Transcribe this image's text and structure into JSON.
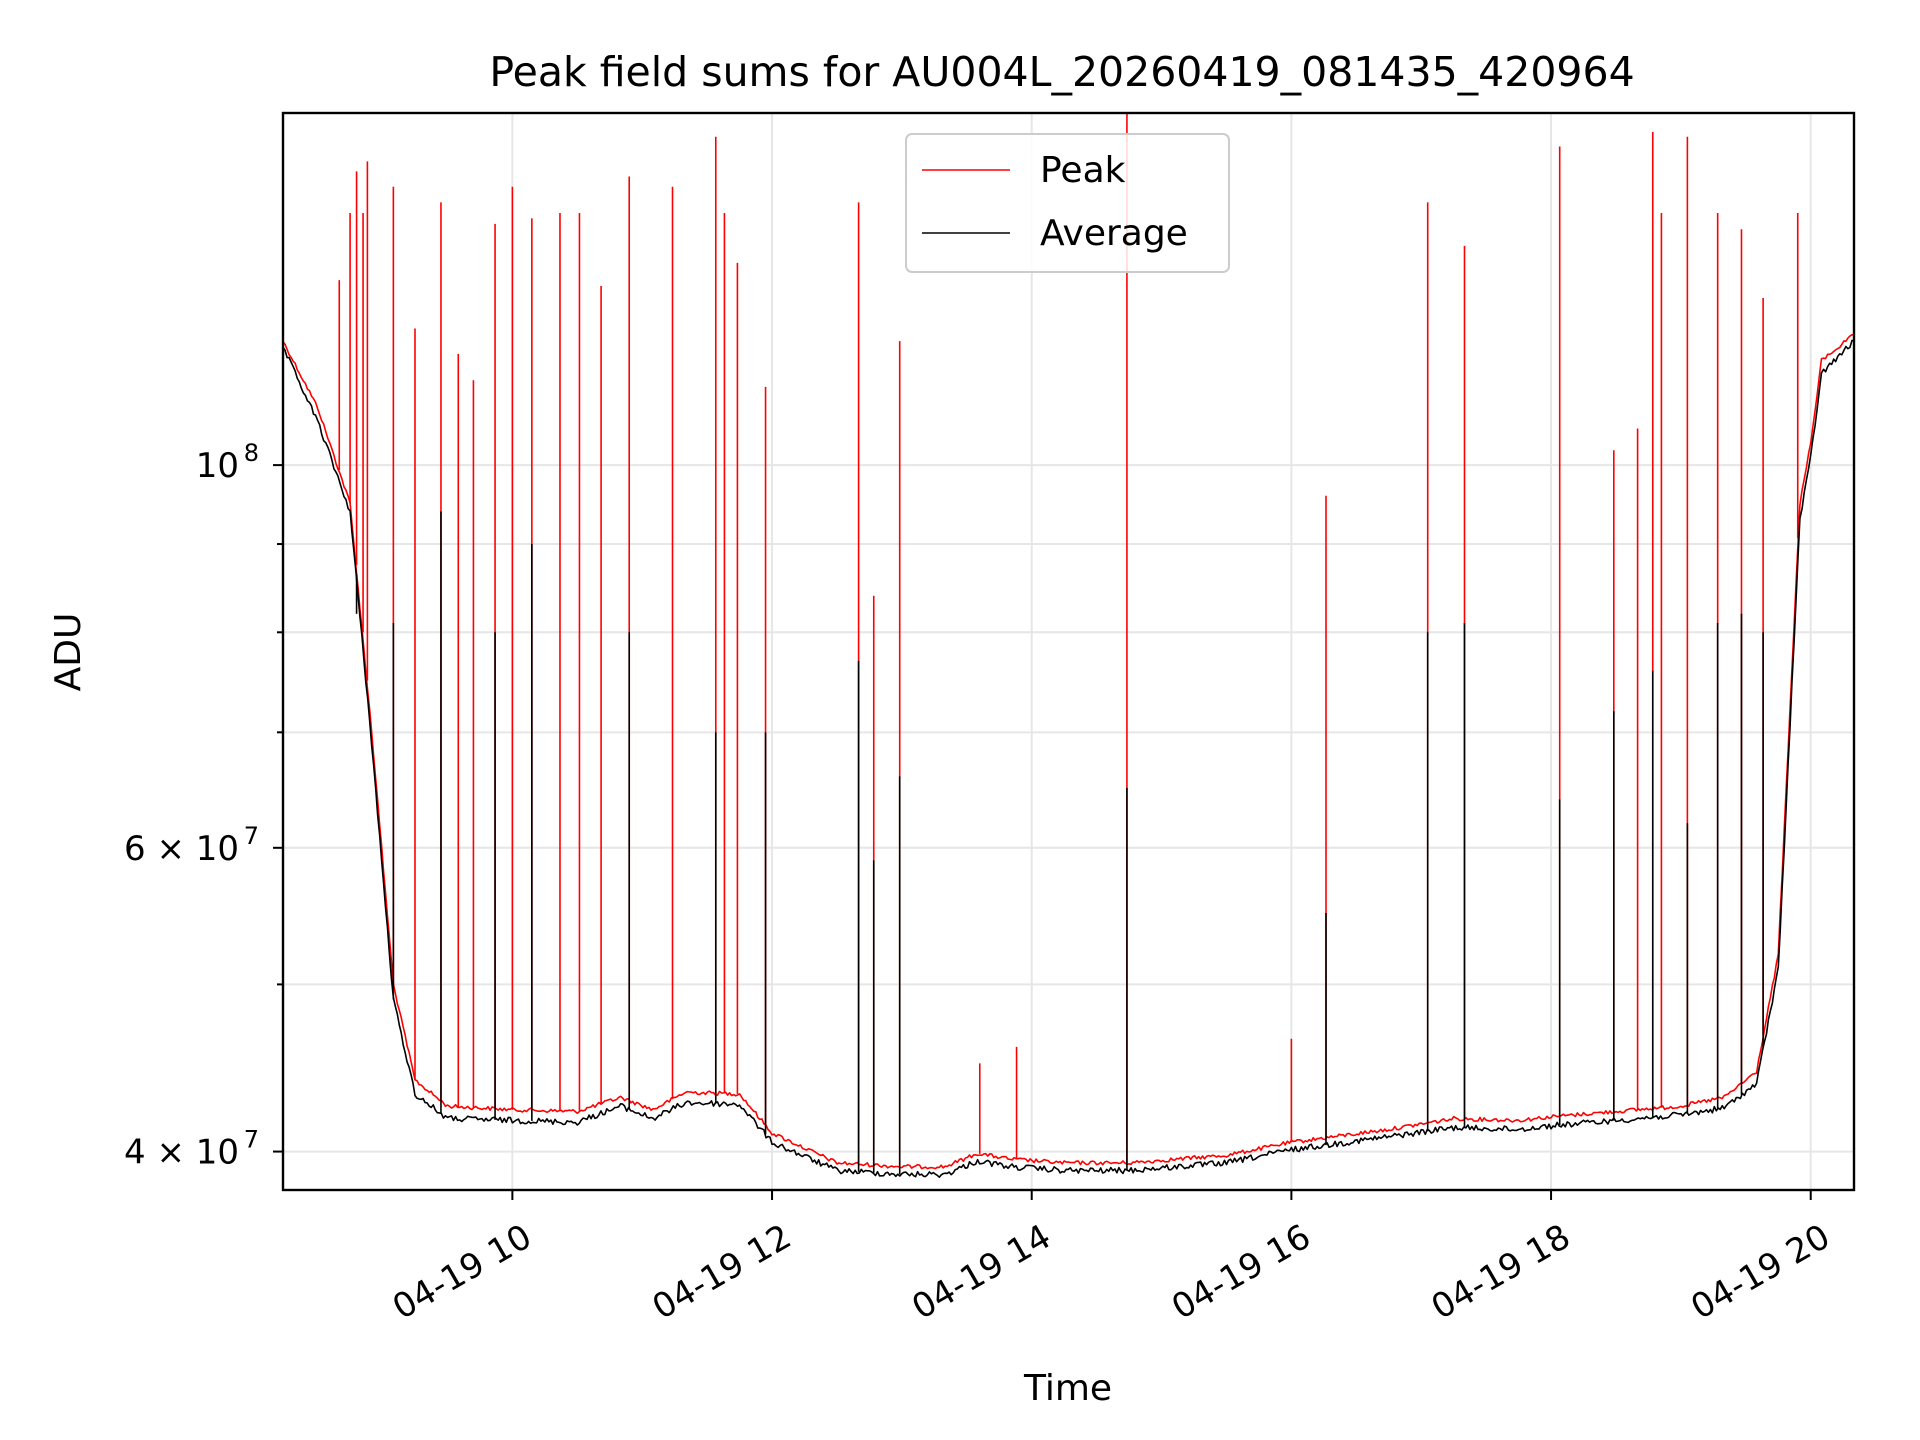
{
  "chart_data": {
    "type": "line",
    "title": "Peak field sums for AU004L_20260419_081435_420964",
    "xlabel": "Time",
    "ylabel": "ADU",
    "y_scale": "log",
    "ylim": [
      38000000,
      160000000
    ],
    "xlim": [
      "2026-04-19 08:14",
      "2026-04-19 20:20"
    ],
    "grid": true,
    "legend": "top-center",
    "x_ticks": [
      {
        "t": "2026-04-19 10:00",
        "label": "04-19 10"
      },
      {
        "t": "2026-04-19 12:00",
        "label": "04-19 12"
      },
      {
        "t": "2026-04-19 14:00",
        "label": "04-19 14"
      },
      {
        "t": "2026-04-19 16:00",
        "label": "04-19 16"
      },
      {
        "t": "2026-04-19 18:00",
        "label": "04-19 18"
      },
      {
        "t": "2026-04-19 20:00",
        "label": "04-19 20"
      }
    ],
    "y_ticks": [
      {
        "value": 40000000,
        "label": "4 × 10",
        "exp": "7"
      },
      {
        "value": 60000000,
        "label": "6 × 10",
        "exp": "7"
      },
      {
        "value": 100000000,
        "label": "10",
        "exp": "8"
      }
    ],
    "y_minor_ticks": [
      50000000,
      70000000,
      80000000,
      90000000
    ],
    "series": [
      {
        "name": "Peak",
        "color": "#ff0000",
        "baseline": [
          [
            "2026-04-19 08:14",
            118000000
          ],
          [
            "2026-04-19 08:30",
            108000000
          ],
          [
            "2026-04-19 08:45",
            95000000
          ],
          [
            "2026-04-19 08:55",
            70000000
          ],
          [
            "2026-04-19 09:05",
            50000000
          ],
          [
            "2026-04-19 09:15",
            44000000
          ],
          [
            "2026-04-19 09:30",
            42500000
          ],
          [
            "2026-04-19 10:00",
            42300000
          ],
          [
            "2026-04-19 10:30",
            42200000
          ],
          [
            "2026-04-19 10:50",
            43000000
          ],
          [
            "2026-04-19 11:05",
            42300000
          ],
          [
            "2026-04-19 11:20",
            43300000
          ],
          [
            "2026-04-19 11:45",
            43200000
          ],
          [
            "2026-04-19 12:00",
            41000000
          ],
          [
            "2026-04-19 12:30",
            39400000
          ],
          [
            "2026-04-19 13:00",
            39200000
          ],
          [
            "2026-04-19 13:20",
            39200000
          ],
          [
            "2026-04-19 13:35",
            39900000
          ],
          [
            "2026-04-19 13:50",
            39600000
          ],
          [
            "2026-04-19 14:15",
            39400000
          ],
          [
            "2026-04-19 14:45",
            39400000
          ],
          [
            "2026-04-19 15:30",
            39800000
          ],
          [
            "2026-04-19 16:00",
            40500000
          ],
          [
            "2026-04-19 16:45",
            41200000
          ],
          [
            "2026-04-19 17:15",
            41800000
          ],
          [
            "2026-04-19 17:45",
            41700000
          ],
          [
            "2026-04-19 18:00",
            41900000
          ],
          [
            "2026-04-19 18:30",
            42200000
          ],
          [
            "2026-04-19 19:00",
            42500000
          ],
          [
            "2026-04-19 19:20",
            43000000
          ],
          [
            "2026-04-19 19:35",
            44500000
          ],
          [
            "2026-04-19 19:45",
            52000000
          ],
          [
            "2026-04-19 19:55",
            95000000
          ],
          [
            "2026-04-19 20:00",
            103000000
          ],
          [
            "2026-04-19 20:05",
            115000000
          ],
          [
            "2026-04-19 20:20",
            119000000
          ]
        ],
        "spikes": [
          [
            "2026-04-19 08:40",
            128000000
          ],
          [
            "2026-04-19 08:45",
            140000000
          ],
          [
            "2026-04-19 08:48",
            148000000
          ],
          [
            "2026-04-19 08:51",
            140000000
          ],
          [
            "2026-04-19 08:53",
            150000000
          ],
          [
            "2026-04-19 09:05",
            145000000
          ],
          [
            "2026-04-19 09:15",
            120000000
          ],
          [
            "2026-04-19 09:27",
            142000000
          ],
          [
            "2026-04-19 09:35",
            116000000
          ],
          [
            "2026-04-19 09:42",
            112000000
          ],
          [
            "2026-04-19 09:52",
            138000000
          ],
          [
            "2026-04-19 10:00",
            145000000
          ],
          [
            "2026-04-19 10:09",
            139000000
          ],
          [
            "2026-04-19 10:22",
            140000000
          ],
          [
            "2026-04-19 10:31",
            140000000
          ],
          [
            "2026-04-19 10:41",
            127000000
          ],
          [
            "2026-04-19 10:54",
            147000000
          ],
          [
            "2026-04-19 11:14",
            145000000
          ],
          [
            "2026-04-19 11:34",
            155000000
          ],
          [
            "2026-04-19 11:38",
            140000000
          ],
          [
            "2026-04-19 11:44",
            131000000
          ],
          [
            "2026-04-19 11:57",
            111000000
          ],
          [
            "2026-04-19 12:40",
            142000000
          ],
          [
            "2026-04-19 12:47",
            84000000
          ],
          [
            "2026-04-19 12:59",
            118000000
          ],
          [
            "2026-04-19 13:36",
            45000000
          ],
          [
            "2026-04-19 13:53",
            46000000
          ],
          [
            "2026-04-19 14:44",
            160000000
          ],
          [
            "2026-04-19 16:00",
            46500000
          ],
          [
            "2026-04-19 16:16",
            96000000
          ],
          [
            "2026-04-19 17:03",
            142000000
          ],
          [
            "2026-04-19 17:20",
            134000000
          ],
          [
            "2026-04-19 18:04",
            153000000
          ],
          [
            "2026-04-19 18:29",
            102000000
          ],
          [
            "2026-04-19 18:40",
            105000000
          ],
          [
            "2026-04-19 18:47",
            156000000
          ],
          [
            "2026-04-19 18:51",
            140000000
          ],
          [
            "2026-04-19 19:03",
            155000000
          ],
          [
            "2026-04-19 19:17",
            140000000
          ],
          [
            "2026-04-19 19:28",
            137000000
          ],
          [
            "2026-04-19 19:38",
            125000000
          ],
          [
            "2026-04-19 19:54",
            140000000
          ]
        ]
      },
      {
        "name": "Average",
        "color": "#000000",
        "baseline": [
          [
            "2026-04-19 08:14",
            117000000
          ],
          [
            "2026-04-19 08:30",
            106000000
          ],
          [
            "2026-04-19 08:45",
            94000000
          ],
          [
            "2026-04-19 08:55",
            69000000
          ],
          [
            "2026-04-19 09:05",
            49000000
          ],
          [
            "2026-04-19 09:15",
            43200000
          ],
          [
            "2026-04-19 09:30",
            41800000
          ],
          [
            "2026-04-19 10:00",
            41700000
          ],
          [
            "2026-04-19 10:30",
            41600000
          ],
          [
            "2026-04-19 10:50",
            42500000
          ],
          [
            "2026-04-19 11:05",
            41800000
          ],
          [
            "2026-04-19 11:20",
            42700000
          ],
          [
            "2026-04-19 11:45",
            42600000
          ],
          [
            "2026-04-19 12:00",
            40500000
          ],
          [
            "2026-04-19 12:30",
            39000000
          ],
          [
            "2026-04-19 13:00",
            38800000
          ],
          [
            "2026-04-19 13:20",
            38800000
          ],
          [
            "2026-04-19 13:35",
            39500000
          ],
          [
            "2026-04-19 13:50",
            39200000
          ],
          [
            "2026-04-19 14:15",
            39000000
          ],
          [
            "2026-04-19 14:45",
            39000000
          ],
          [
            "2026-04-19 15:30",
            39400000
          ],
          [
            "2026-04-19 16:00",
            40100000
          ],
          [
            "2026-04-19 16:45",
            40800000
          ],
          [
            "2026-04-19 17:15",
            41300000
          ],
          [
            "2026-04-19 17:45",
            41200000
          ],
          [
            "2026-04-19 18:00",
            41400000
          ],
          [
            "2026-04-19 18:30",
            41700000
          ],
          [
            "2026-04-19 19:00",
            42000000
          ],
          [
            "2026-04-19 19:20",
            42400000
          ],
          [
            "2026-04-19 19:35",
            43800000
          ],
          [
            "2026-04-19 19:45",
            51000000
          ],
          [
            "2026-04-19 19:55",
            93000000
          ],
          [
            "2026-04-19 20:00",
            101000000
          ],
          [
            "2026-04-19 20:05",
            113000000
          ],
          [
            "2026-04-19 20:20",
            118000000
          ]
        ],
        "spikes": [
          [
            "2026-04-19 08:48",
            82000000
          ],
          [
            "2026-04-19 09:05",
            81000000
          ],
          [
            "2026-04-19 09:27",
            94000000
          ],
          [
            "2026-04-19 09:52",
            80000000
          ],
          [
            "2026-04-19 10:09",
            90000000
          ],
          [
            "2026-04-19 10:54",
            80000000
          ],
          [
            "2026-04-19 11:34",
            70000000
          ],
          [
            "2026-04-19 11:57",
            70000000
          ],
          [
            "2026-04-19 12:40",
            77000000
          ],
          [
            "2026-04-19 12:47",
            59000000
          ],
          [
            "2026-04-19 12:59",
            66000000
          ],
          [
            "2026-04-19 14:44",
            65000000
          ],
          [
            "2026-04-19 16:16",
            55000000
          ],
          [
            "2026-04-19 17:03",
            80000000
          ],
          [
            "2026-04-19 17:20",
            81000000
          ],
          [
            "2026-04-19 18:04",
            64000000
          ],
          [
            "2026-04-19 18:29",
            72000000
          ],
          [
            "2026-04-19 18:47",
            76000000
          ],
          [
            "2026-04-19 19:03",
            62000000
          ],
          [
            "2026-04-19 19:17",
            81000000
          ],
          [
            "2026-04-19 19:28",
            82000000
          ],
          [
            "2026-04-19 19:38",
            80000000
          ]
        ]
      }
    ]
  }
}
